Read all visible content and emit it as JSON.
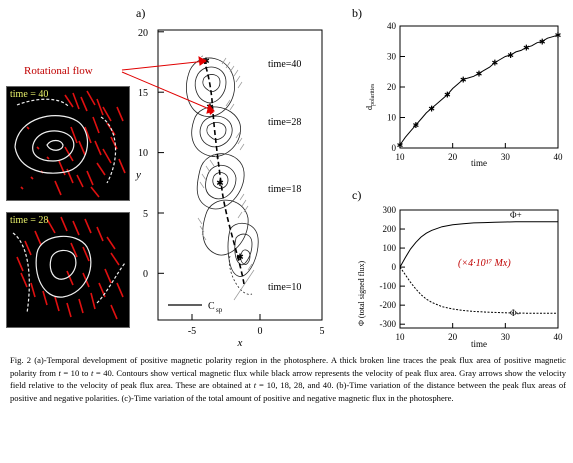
{
  "panel_a": {
    "letter": "a)",
    "annotation_label": "Rotational flow",
    "inset_top_label": "time = 40",
    "inset_bottom_label": "time = 28",
    "time_labels": [
      "time=40",
      "time=28",
      "time=18",
      "time=10"
    ],
    "legend_label": "C",
    "legend_sub": "sp",
    "xlabel": "x",
    "ylabel": "y",
    "x_ticks": [
      "-5",
      "0",
      "5"
    ],
    "y_ticks": [
      "0",
      "5",
      "10",
      "15",
      "20"
    ]
  },
  "panel_b": {
    "letter": "b)",
    "xlabel": "time",
    "ylabel": "d",
    "ylabel_sub": "polarities",
    "x_ticks": [
      "10",
      "20",
      "30",
      "40"
    ],
    "y_ticks": [
      "0",
      "10",
      "20",
      "30",
      "40"
    ]
  },
  "panel_c": {
    "letter": "c)",
    "xlabel": "time",
    "ylabel": "Φ (total signed flux)",
    "x_ticks": [
      "10",
      "20",
      "30",
      "40"
    ],
    "y_ticks": [
      "-300",
      "-200",
      "-100",
      "0",
      "100",
      "200",
      "300"
    ],
    "upper_curve_label": "Φ+",
    "lower_curve_label": "Φ-",
    "unit_note": "(×4·10¹⁷ Mx)"
  },
  "chart_data": [
    {
      "type": "line",
      "title": "",
      "xlabel": "time",
      "ylabel": "d polarities",
      "xlim": [
        10,
        40
      ],
      "ylim": [
        0,
        40
      ],
      "series": [
        {
          "x": [
            10,
            11,
            12,
            13,
            14,
            15,
            16,
            17,
            18,
            19,
            20,
            21,
            22,
            23,
            24,
            25,
            26,
            27,
            28,
            29,
            30,
            31,
            32,
            33,
            34,
            35,
            36,
            37,
            38,
            39,
            40
          ],
          "values": [
            1,
            3.5,
            5.5,
            7.5,
            9.5,
            11.5,
            13,
            14.5,
            16,
            17.5,
            19.5,
            21,
            22.5,
            23,
            23.5,
            24.5,
            25.5,
            26.5,
            28,
            29,
            30,
            30.5,
            31.5,
            32,
            33,
            33.5,
            34.5,
            35,
            36,
            36.5,
            37
          ]
        }
      ]
    },
    {
      "type": "line",
      "title": "",
      "xlabel": "time",
      "ylabel": "Φ (total signed flux)",
      "xlim": [
        10,
        40
      ],
      "ylim": [
        -320,
        300
      ],
      "series": [
        {
          "name": "Φ+",
          "x": [
            10,
            11,
            12,
            13,
            14,
            15,
            16,
            18,
            20,
            22,
            24,
            26,
            28,
            30,
            32,
            34,
            36,
            38,
            40
          ],
          "values": [
            0,
            50,
            95,
            130,
            158,
            178,
            193,
            212,
            222,
            228,
            232,
            234,
            236,
            237,
            238,
            238,
            238,
            238,
            238
          ]
        },
        {
          "name": "Φ-",
          "x": [
            10,
            11,
            12,
            13,
            14,
            15,
            16,
            18,
            20,
            22,
            24,
            26,
            28,
            30,
            32,
            34,
            36,
            38,
            40
          ],
          "values": [
            0,
            -40,
            -80,
            -115,
            -145,
            -168,
            -185,
            -208,
            -220,
            -228,
            -233,
            -236,
            -238,
            -240,
            -241,
            -242,
            -243,
            -243,
            -243
          ]
        }
      ]
    }
  ],
  "caption": {
    "lead": "Fig. 2 (a)-Temporal development of positive magnetic polarity region in the photosphere. A thick broken line traces the peak flux area of positive magnetic polarity from ",
    "t1": "t",
    "mid1": " = 10 to ",
    "t2": "t",
    "rest": " = 40. Contours show vertical magnetic flux while black arrow represents the velocity of peak flux area. Gray arrows show the velocity field relative to the velocity of peak flux area. These are obtained at ",
    "t3": "t",
    "tail": " = 10, 18, 28, and 40. (b)-Time variation of the distance between the peak flux areas of positive and negative polarities. (c)-Time variation of the total amount of positive and negative magnetic flux in the photosphere."
  }
}
